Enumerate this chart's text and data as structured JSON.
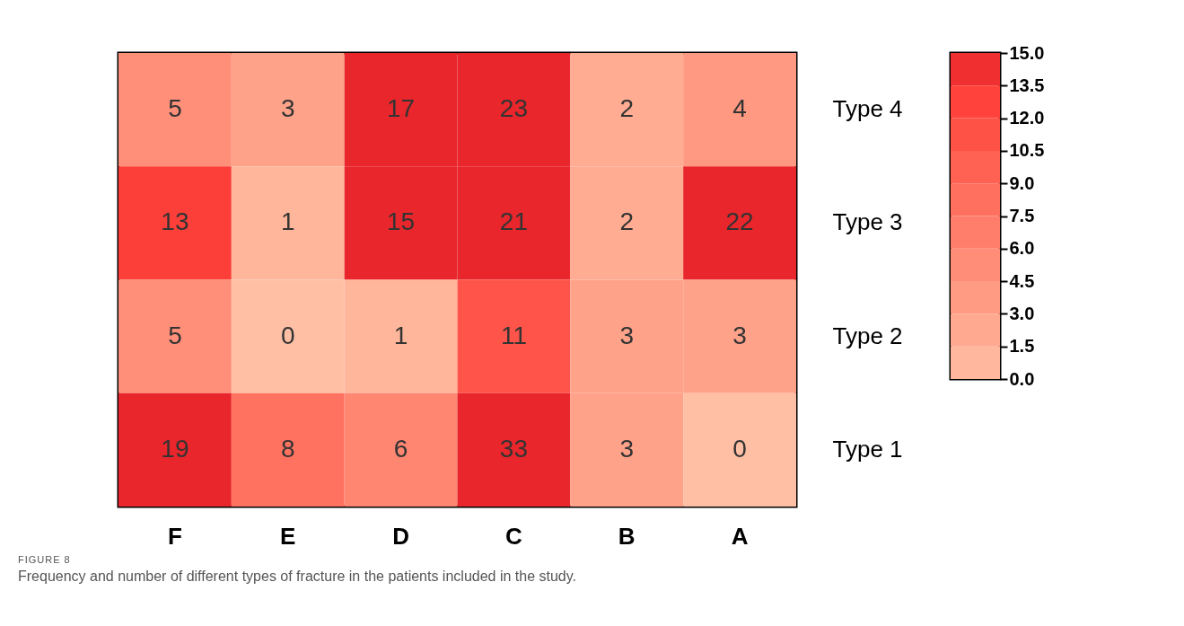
{
  "chart_data": {
    "type": "heatmap",
    "categories": [
      "F",
      "E",
      "D",
      "C",
      "B",
      "A"
    ],
    "y_categories": [
      "Type 4",
      "Type 3",
      "Type 2",
      "Type 1"
    ],
    "cells": [
      [
        5,
        3,
        17,
        23,
        2,
        4
      ],
      [
        13,
        1,
        15,
        21,
        2,
        22
      ],
      [
        5,
        0,
        1,
        11,
        3,
        3
      ],
      [
        19,
        8,
        6,
        33,
        3,
        0
      ]
    ],
    "data_labels": true,
    "clim": [
      0,
      15
    ],
    "cticks": [
      {
        "value": 0,
        "label": "0.0"
      },
      1.5,
      {
        "value": 3,
        "label": "3.0"
      },
      4.5,
      {
        "value": 6,
        "label": "6.0"
      },
      7.5,
      {
        "value": 9,
        "label": "9.0"
      },
      10.5,
      {
        "value": 12,
        "label": "12.0"
      },
      13.5,
      {
        "value": 15,
        "label": "15.0"
      }
    ],
    "annotations": [
      "FIGURE 8",
      "Frequency and number of different types of fracture in the patients included in the study."
    ]
  }
}
